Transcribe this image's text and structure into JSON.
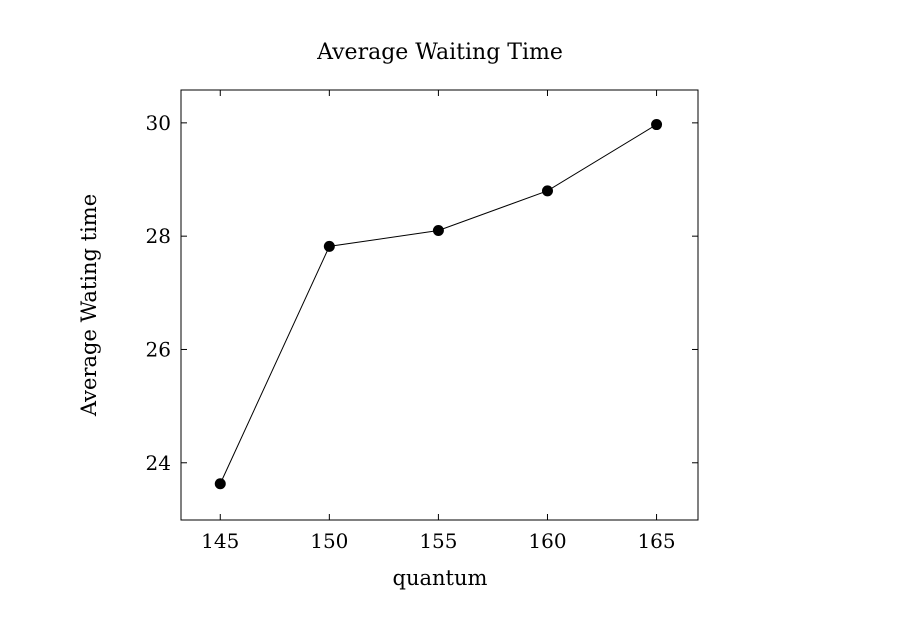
{
  "chart_data": {
    "type": "line",
    "title": "Average Waiting Time",
    "xlabel": "quantum",
    "ylabel": "Average Wating time",
    "x": [
      145,
      150,
      155,
      160,
      165
    ],
    "series": [
      {
        "values": [
          23.63,
          27.82,
          28.1,
          28.8,
          29.97
        ]
      }
    ],
    "xlim": [
      143.2,
      166.9
    ],
    "ylim": [
      22.99,
      30.58
    ],
    "xticks": [
      145,
      150,
      155,
      160,
      165
    ],
    "yticks": [
      24,
      26,
      28,
      30
    ],
    "grid": false,
    "legend": "none",
    "line_color": "#000000",
    "marker_color": "#000000",
    "marker": "filled-circle"
  }
}
